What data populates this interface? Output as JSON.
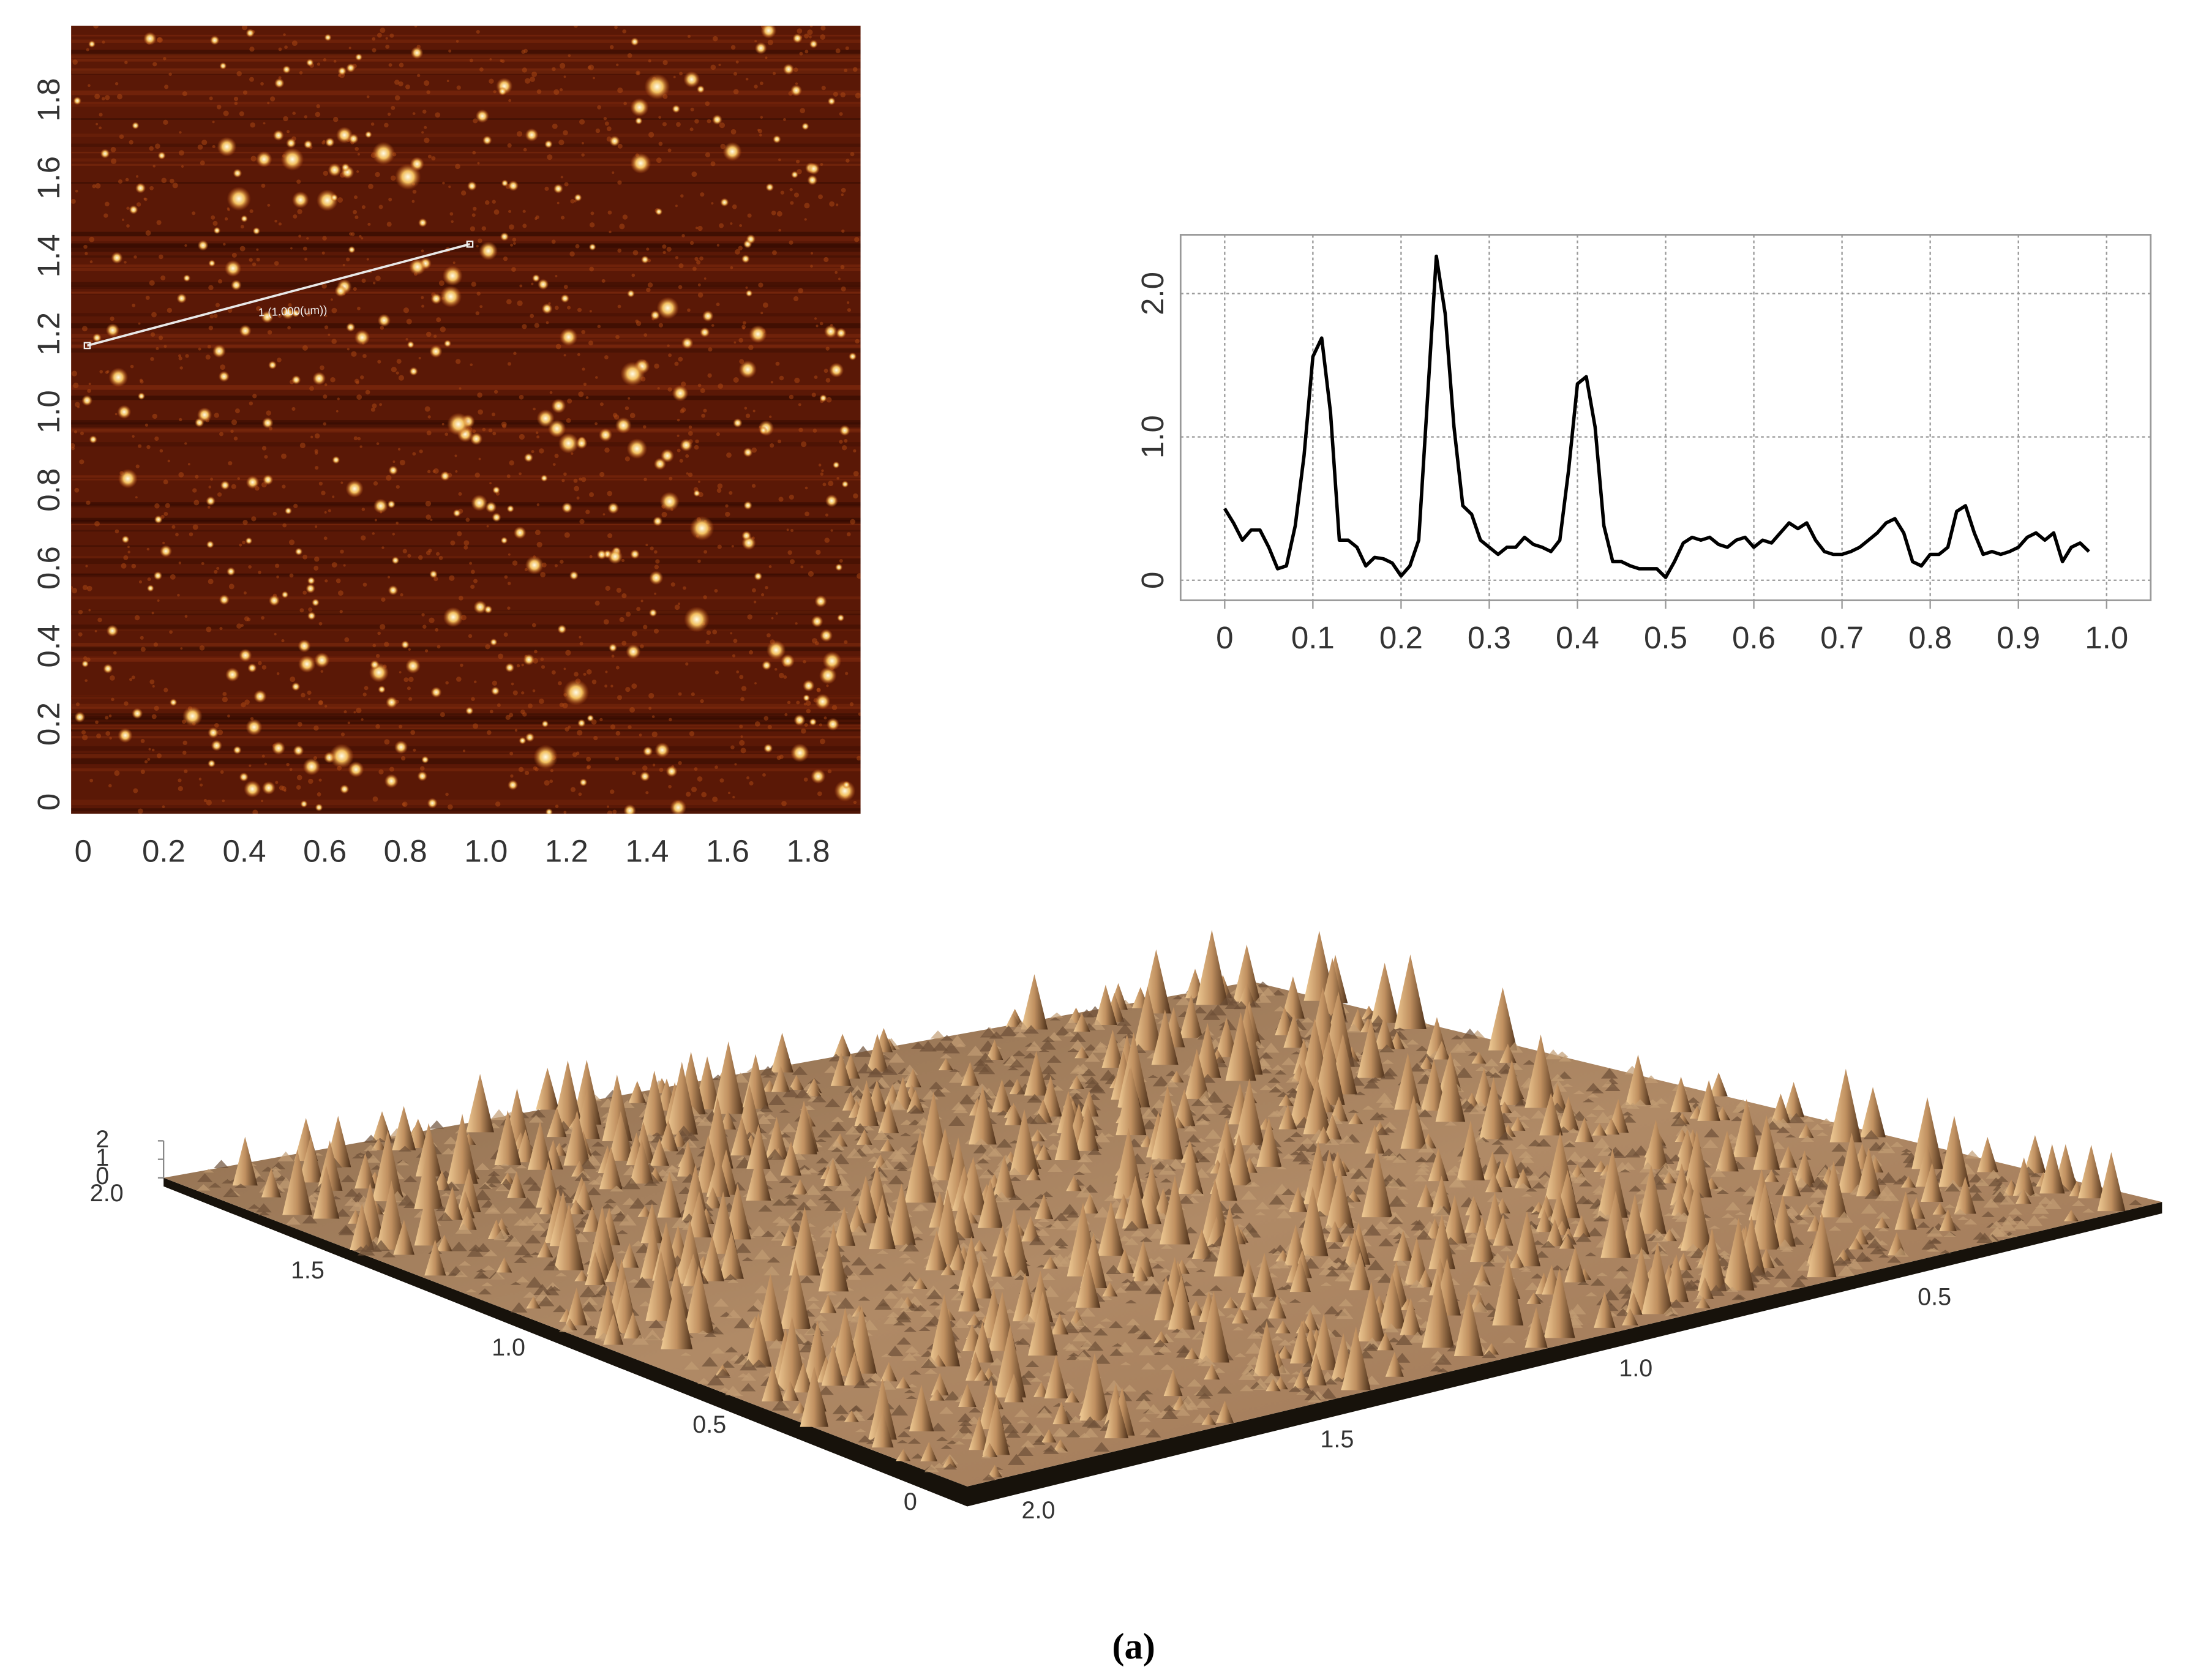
{
  "caption": "(a)",
  "chart_data": [
    {
      "type": "image",
      "xlim": [
        -0.03,
        1.93
      ],
      "ylim": [
        -0.03,
        1.99
      ],
      "xticks": [
        0,
        0.2,
        0.4,
        0.6,
        0.8,
        {
          "value": 1,
          "label": "1.0"
        },
        1.2,
        1.4,
        1.6,
        1.8
      ],
      "yticks": [
        0,
        0.2,
        0.4,
        0.6,
        0.8,
        {
          "value": 1,
          "label": "1.0"
        },
        1.2,
        1.4,
        1.6,
        1.8
      ],
      "profile_line": {
        "label": "1 (1.000(um))",
        "x": [
          0.01,
          0.96
        ],
        "y": [
          1.17,
          1.43
        ]
      }
    },
    {
      "type": "line",
      "color": "#000000",
      "grid": true,
      "xlim": [
        -0.05,
        1.05
      ],
      "ylim": [
        -0.14,
        2.41
      ],
      "xticks": [
        0,
        0.1,
        0.2,
        0.3,
        0.4,
        0.5,
        0.6,
        0.7,
        0.8,
        0.9,
        {
          "value": 1,
          "label": "1.0"
        }
      ],
      "yticks": [
        0,
        {
          "value": 1,
          "label": "1.0"
        },
        {
          "value": 2,
          "label": "2.0"
        }
      ],
      "x": [
        0,
        0.01,
        0.02,
        0.03,
        0.04,
        0.05,
        0.06,
        0.07,
        0.08,
        0.09,
        0.1,
        0.11,
        0.12,
        0.13,
        0.14,
        0.15,
        0.16,
        0.17,
        0.18,
        0.19,
        0.2,
        0.21,
        0.22,
        0.23,
        0.24,
        0.25,
        0.26,
        0.27,
        0.28,
        0.29,
        0.3,
        0.31,
        0.32,
        0.33,
        0.34,
        0.35,
        0.36,
        0.37,
        0.38,
        0.39,
        0.4,
        0.41,
        0.42,
        0.43,
        0.44,
        0.45,
        0.46,
        0.47,
        0.48,
        0.49,
        0.5,
        0.51,
        0.52,
        0.53,
        0.54,
        0.55,
        0.56,
        0.57,
        0.58,
        0.59,
        0.6,
        0.61,
        0.62,
        0.63,
        0.64,
        0.65,
        0.66,
        0.67,
        0.68,
        0.69,
        0.7,
        0.71,
        0.72,
        0.73,
        0.74,
        0.75,
        0.76,
        0.77,
        0.78,
        0.79,
        0.8,
        0.81,
        0.82,
        0.83,
        0.84,
        0.85,
        0.86,
        0.87,
        0.88,
        0.89,
        0.9,
        0.91,
        0.92,
        0.93,
        0.94,
        0.95,
        0.96,
        0.97,
        0.98
      ],
      "values": [
        0.5,
        0.4,
        0.28,
        0.35,
        0.35,
        0.23,
        0.08,
        0.1,
        0.38,
        0.87,
        1.56,
        1.69,
        1.17,
        0.28,
        0.28,
        0.23,
        0.1,
        0.16,
        0.15,
        0.12,
        0.03,
        0.1,
        0.28,
        1.27,
        2.26,
        1.86,
        1.07,
        0.52,
        0.46,
        0.28,
        0.23,
        0.18,
        0.23,
        0.23,
        0.3,
        0.25,
        0.23,
        0.2,
        0.28,
        0.77,
        1.37,
        1.42,
        1.07,
        0.38,
        0.13,
        0.13,
        0.1,
        0.08,
        0.08,
        0.08,
        0.02,
        0.13,
        0.26,
        0.3,
        0.28,
        0.3,
        0.25,
        0.23,
        0.28,
        0.3,
        0.23,
        0.28,
        0.26,
        0.33,
        0.4,
        0.36,
        0.4,
        0.28,
        0.2,
        0.18,
        0.18,
        0.2,
        0.23,
        0.28,
        0.33,
        0.4,
        0.43,
        0.33,
        0.13,
        0.1,
        0.18,
        0.18,
        0.23,
        0.48,
        0.52,
        0.33,
        0.18,
        0.2,
        0.18,
        0.2,
        0.23,
        0.3,
        0.33,
        0.28,
        0.33,
        0.13,
        0.23,
        0.26,
        0.2
      ]
    },
    {
      "type": "surface",
      "xlim": [
        0,
        2
      ],
      "ylim": [
        0,
        2
      ],
      "zlim": [
        0,
        2
      ],
      "xticks": [
        0,
        0.5,
        {
          "value": 1,
          "label": "1.0"
        },
        1.5,
        {
          "value": 2,
          "label": "2.0"
        }
      ],
      "yticks": [
        0,
        0.5,
        {
          "value": 1,
          "label": "1.0"
        },
        1.5,
        {
          "value": 2,
          "label": "2.0"
        }
      ],
      "zticks": [
        0,
        1,
        2
      ]
    }
  ]
}
